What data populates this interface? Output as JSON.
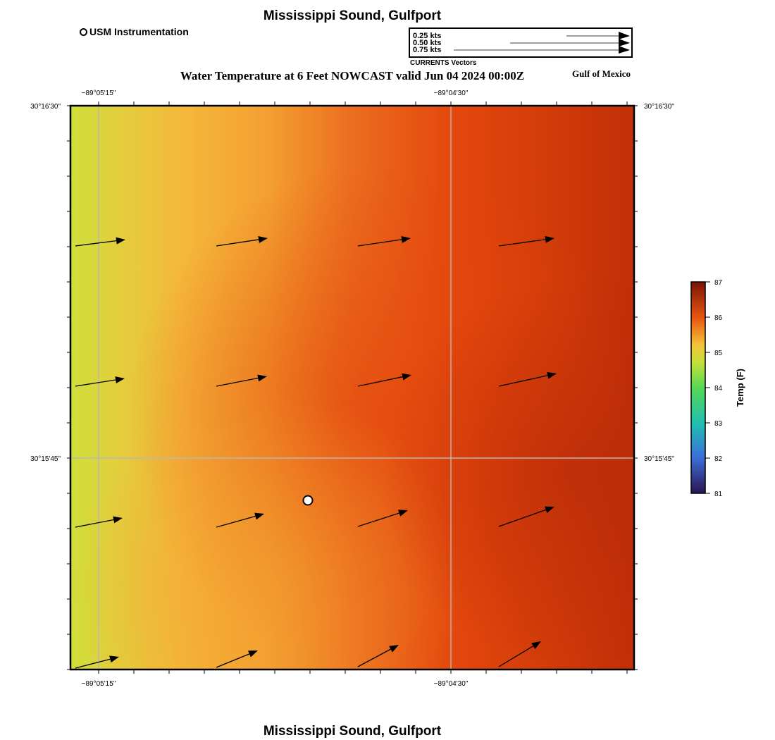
{
  "map": {
    "title_top": "Mississippi Sound, Gulfport",
    "title_bottom": "Mississippi Sound, Gulfport",
    "subtitle": "Water Temperature at 6 Feet NOWCAST valid Jun 04 2024 00:00Z",
    "region": "Gulf of Mexico",
    "lon_labels": [
      "−89°05'15\"",
      "−89°04'30\""
    ],
    "lat_labels": [
      "30°16'30\"",
      "30°15'45\""
    ]
  },
  "legend": {
    "station_label": "USM Instrumentation",
    "vector_scales": [
      "0.25 kts",
      "0.50 kts",
      "0.75 kts"
    ],
    "vector_caption": "CURRENTS Vectors"
  },
  "colorbar": {
    "label": "Temp (F)",
    "ticks": [
      "87",
      "86",
      "85",
      "84",
      "83",
      "82",
      "81"
    ],
    "min": 81,
    "max": 87
  },
  "colors": {
    "temp_low": "#cfe03a",
    "temp_mid": "#f5b83a",
    "temp_high": "#e3470c",
    "temp_max": "#be2d08"
  }
}
